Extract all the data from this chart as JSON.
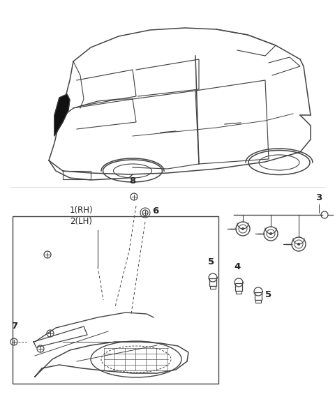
{
  "bg_color": "#ffffff",
  "line_color": "#444444",
  "label_color": "#222222",
  "font_size_labels": 8.5,
  "font_size_numbers": 9.5
}
